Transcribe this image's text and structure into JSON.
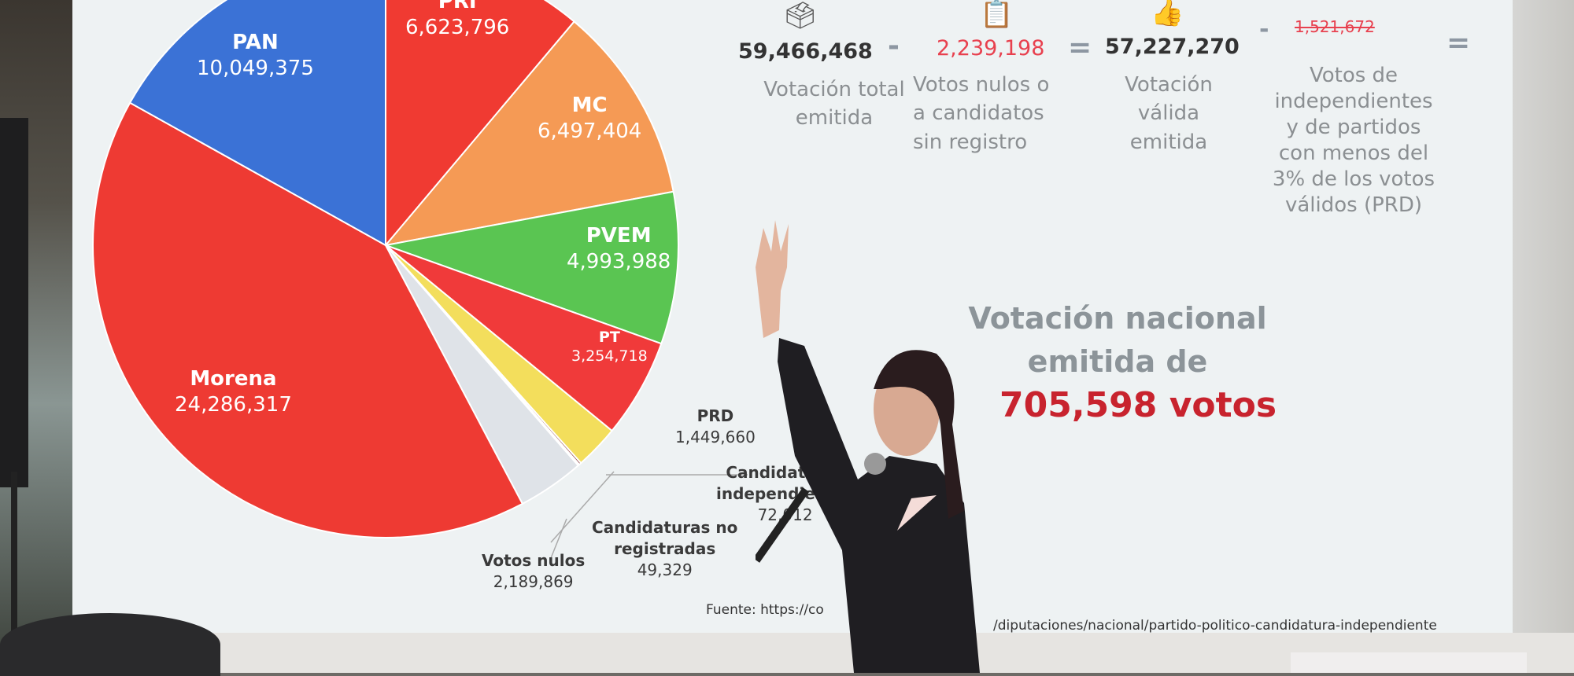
{
  "chart_data": {
    "type": "pie",
    "slices": [
      {
        "label": "PRI",
        "value": 6623796,
        "color": "#f03a32"
      },
      {
        "label": "MC",
        "value": 6497404,
        "color": "#f59a55"
      },
      {
        "label": "PVEM",
        "value": 4993988,
        "color": "#5ac552"
      },
      {
        "label": "PT",
        "value": 3254718,
        "color": "#f03a3a"
      },
      {
        "label": "PRD",
        "value": 1449660,
        "color": "#f3de5c"
      },
      {
        "label": "Candidaturas independientes",
        "value": 72012,
        "color": "#8b3a3a"
      },
      {
        "label": "Candidaturas no registradas",
        "value": 49329,
        "color": "#bfc6ce"
      },
      {
        "label": "Votos nulos",
        "value": 2189869,
        "color": "#dfe3e8"
      },
      {
        "label": "Morena",
        "value": 24286317,
        "color": "#ee3a33"
      },
      {
        "label": "PAN",
        "value": 10049375,
        "color": "#3b72d6"
      }
    ],
    "labels": {
      "pri": {
        "name": "PRI",
        "value": "6,623,796"
      },
      "pan": {
        "name": "PAN",
        "value": "10,049,375"
      },
      "mc": {
        "name": "MC",
        "value": "6,497,404"
      },
      "pvem": {
        "name": "PVEM",
        "value": "4,993,988"
      },
      "pt": {
        "name": "PT",
        "value": "3,254,718"
      },
      "morena": {
        "name": "Morena",
        "value": "24,286,317"
      },
      "prd": {
        "name": "PRD",
        "value": "1,449,660"
      },
      "indep": {
        "name1": "Candidaturas",
        "name2": "independientes",
        "value": "72,012"
      },
      "noreg": {
        "name1": "Candidaturas no",
        "name2": "registradas",
        "value": "49,329"
      },
      "nulos": {
        "name": "Votos nulos",
        "value": "2,189,869"
      }
    }
  },
  "equation": {
    "total": "59,466,468",
    "total_caption": [
      "Votación total",
      "emitida"
    ],
    "minus1": "-",
    "nulos": "2,239,198",
    "nulos_caption": [
      "Votos nulos o",
      "a  candidatos",
      "sin registro"
    ],
    "equals1": "=",
    "valid": "57,227,270",
    "valid_caption": [
      "Votación",
      "válida",
      "emitida"
    ],
    "minus2": "-",
    "small": "1,521,672",
    "small_caption": [
      "Votos de",
      "independientes",
      "y de partidos",
      "con menos del",
      "3% de los votos",
      "válidos (PRD)"
    ],
    "equals2": "=",
    "colors": {
      "accent": "#e8414f",
      "operator": "#8d97a2"
    }
  },
  "headline": [
    "Votación nacional",
    "emitida de"
  ],
  "headline_value": "705,598 votos",
  "source_a": "Fuente:  https://co",
  "source_b": "/diputaciones/nacional/partido-politico-candidatura-independiente",
  "icons": [
    "ballot-box-icon",
    "invalid-vote-icon",
    "thumbs-up-icon"
  ]
}
